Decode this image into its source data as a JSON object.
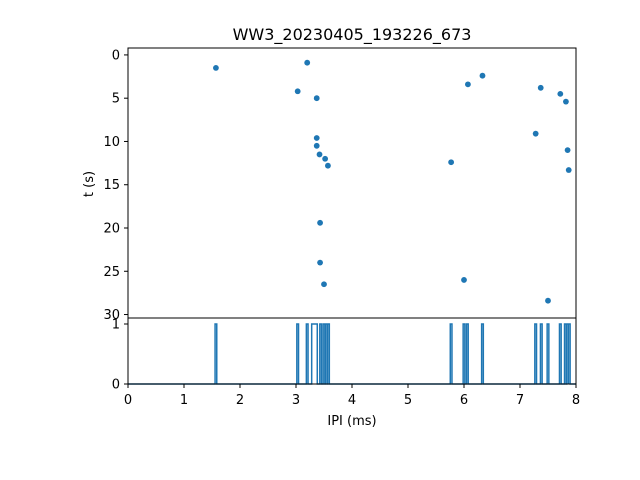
{
  "title": "WW3_20230405_193226_673",
  "colors": {
    "series": "#1f77b4",
    "axis": "#000000",
    "background": "#ffffff"
  },
  "chart_data": [
    {
      "type": "scatter",
      "title": "WW3_20230405_193226_673",
      "xlabel": "",
      "ylabel": "t (s)",
      "xlim": [
        0,
        8
      ],
      "ylim": [
        30.4,
        -0.8
      ],
      "y_inverted": true,
      "y_ticks": [
        0,
        5,
        10,
        15,
        20,
        25,
        30
      ],
      "x_ticks": [],
      "grid": false,
      "points": [
        {
          "x": 1.57,
          "y": 1.5
        },
        {
          "x": 3.03,
          "y": 4.2
        },
        {
          "x": 3.2,
          "y": 0.9
        },
        {
          "x": 3.37,
          "y": 5.0
        },
        {
          "x": 3.37,
          "y": 9.6
        },
        {
          "x": 3.37,
          "y": 10.5
        },
        {
          "x": 3.42,
          "y": 11.5
        },
        {
          "x": 3.52,
          "y": 12.0
        },
        {
          "x": 3.57,
          "y": 12.8
        },
        {
          "x": 3.43,
          "y": 19.4
        },
        {
          "x": 3.43,
          "y": 24.0
        },
        {
          "x": 3.5,
          "y": 26.5
        },
        {
          "x": 5.77,
          "y": 12.4
        },
        {
          "x": 6.0,
          "y": 26.0
        },
        {
          "x": 6.07,
          "y": 3.4
        },
        {
          "x": 6.33,
          "y": 2.4
        },
        {
          "x": 7.28,
          "y": 9.1
        },
        {
          "x": 7.37,
          "y": 3.8
        },
        {
          "x": 7.5,
          "y": 28.4
        },
        {
          "x": 7.72,
          "y": 4.5
        },
        {
          "x": 7.82,
          "y": 5.4
        },
        {
          "x": 7.85,
          "y": 11.0
        },
        {
          "x": 7.87,
          "y": 13.3
        }
      ]
    },
    {
      "type": "line",
      "xlabel": "IPI (ms)",
      "ylabel": "",
      "xlim": [
        0,
        8
      ],
      "ylim": [
        0,
        1.1
      ],
      "x_ticks": [
        0,
        1,
        2,
        3,
        4,
        5,
        6,
        7,
        8
      ],
      "y_ticks": [
        0,
        1
      ],
      "grid": false,
      "pulses": [
        {
          "x": 1.57,
          "width": 0.03
        },
        {
          "x": 3.03,
          "width": 0.03
        },
        {
          "x": 3.2,
          "width": 0.03
        },
        {
          "x": 3.33,
          "width": 0.1
        },
        {
          "x": 3.44,
          "width": 0.03
        },
        {
          "x": 3.5,
          "width": 0.03
        },
        {
          "x": 3.54,
          "width": 0.03
        },
        {
          "x": 3.58,
          "width": 0.03
        },
        {
          "x": 5.77,
          "width": 0.03
        },
        {
          "x": 6.0,
          "width": 0.03
        },
        {
          "x": 6.06,
          "width": 0.03
        },
        {
          "x": 6.33,
          "width": 0.03
        },
        {
          "x": 7.28,
          "width": 0.03
        },
        {
          "x": 7.38,
          "width": 0.03
        },
        {
          "x": 7.5,
          "width": 0.03
        },
        {
          "x": 7.72,
          "width": 0.03
        },
        {
          "x": 7.81,
          "width": 0.03
        },
        {
          "x": 7.85,
          "width": 0.03
        },
        {
          "x": 7.88,
          "width": 0.03
        }
      ]
    }
  ]
}
